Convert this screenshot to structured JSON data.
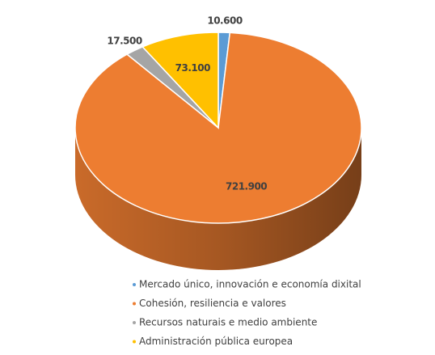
{
  "chart_data": {
    "type": "pie",
    "categories": [
      "Mercado único, innovación e economía dixital",
      "Cohesión, resiliencia e valores",
      "Recursos naturais e medio ambiente",
      "Administración pública europea"
    ],
    "values": [
      10600,
      721900,
      17500,
      73100
    ],
    "value_labels": [
      "10.600",
      "721.900",
      "17.500",
      "73.100"
    ],
    "colors": [
      "#5b9bd5",
      "#ed7d31",
      "#a5a5a5",
      "#ffc000"
    ]
  }
}
